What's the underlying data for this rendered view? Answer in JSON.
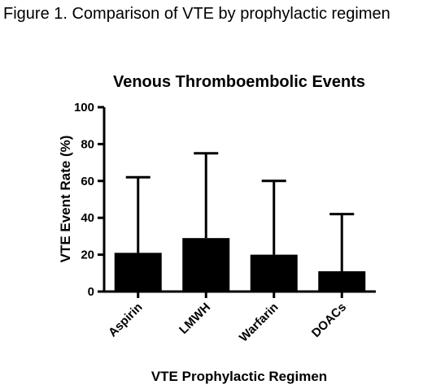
{
  "figure_caption": "Figure 1. Comparison of VTE by prophylactic regimen",
  "chart_data": {
    "type": "bar",
    "title": "Venous Thromboembolic Events",
    "xlabel": "VTE Prophylactic Regimen",
    "ylabel": "VTE Event Rate (%)",
    "categories": [
      "Aspirin",
      "LMWH",
      "Warfarin",
      "DOACs"
    ],
    "values": [
      21,
      29,
      20,
      11
    ],
    "error_upper": [
      62,
      75,
      60,
      42
    ],
    "ylim": [
      0,
      100
    ],
    "yticks": [
      0,
      20,
      40,
      60,
      80,
      100
    ],
    "grid": false,
    "bar_color": "#000000"
  }
}
